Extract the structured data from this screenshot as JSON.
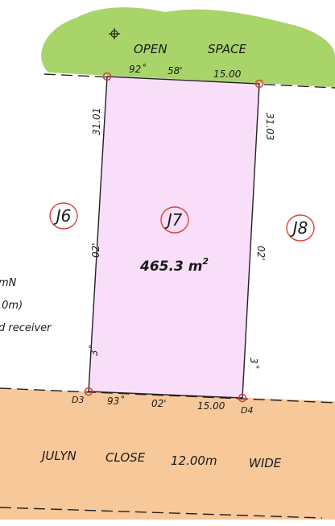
{
  "open_space": {
    "word1": "OPEN",
    "word2": "SPACE",
    "fill": "#a9d46a"
  },
  "road": {
    "name1": "JULYN",
    "name2": "CLOSE",
    "width": "12.00m",
    "wide": "WIDE",
    "fill": "#f7c89a"
  },
  "lot": {
    "id": "J7",
    "area": "465.3 m",
    "area_sup": "2",
    "fill": "#f8def8",
    "border": "#222222"
  },
  "neighbours": {
    "left": "J6",
    "right": "J8",
    "ring_color": "#d9453a"
  },
  "top_boundary": {
    "bearing_deg": "92˚",
    "bearing_min": "58'",
    "distance": "15.00"
  },
  "bottom_boundary": {
    "bearing_deg": "93˚",
    "bearing_min": "02'",
    "distance": "15.00"
  },
  "left_side": {
    "distance": "31.01",
    "bearing_min": "02'",
    "bearing_deg": "3˚"
  },
  "right_side": {
    "distance": "31.03",
    "bearing_min": "02'",
    "bearing_deg": "3˚"
  },
  "corners": {
    "bottom_left": "D3",
    "bottom_right": "D4"
  },
  "notes": {
    "line1": "mN",
    "line2": ".0m)",
    "line3": "d receiver"
  },
  "icons": {
    "survey_mark": "crosshair-icon"
  }
}
